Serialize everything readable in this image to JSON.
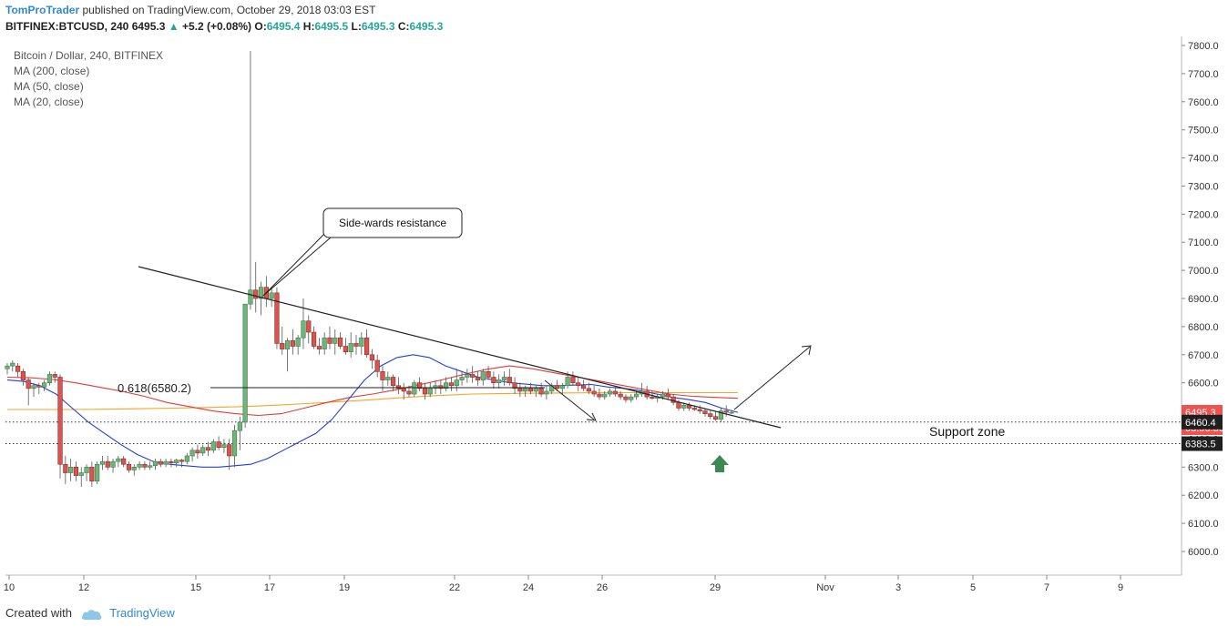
{
  "header": {
    "author": "TomProTrader",
    "published_text": "published on TradingView.com, October 29, 2018 03:03 EST",
    "symbol": "BITFINEX:BTCUSD, 240",
    "last": "6495.3",
    "change_arrow": "▲",
    "change": "+5.2 (+0.08%)",
    "o_label": "O:",
    "o": "6495.4",
    "h_label": "H:",
    "h": "6495.5",
    "l_label": "L:",
    "l": "6495.3",
    "c_label": "C:",
    "c": "6495.3"
  },
  "legend": {
    "title": "Bitcoin / Dollar, 240, BITFINEX",
    "ma200": "MA (200, close)",
    "ma50": "MA (50, close)",
    "ma20": "MA (20, close)"
  },
  "footer": {
    "created_with": "Created with",
    "brand": "TradingView",
    "logo_icon": "tradingview-cloud-icon"
  },
  "annotations": {
    "callout": "Side-wards resistance",
    "fib": "0.618(6580.2)",
    "support": "Support zone",
    "up_arrow_icon": "up-arrow-icon"
  },
  "colors": {
    "up": "#26a69a",
    "down": "#ef5350",
    "up_body": "#6fb57a",
    "down_body": "#d9534f",
    "ma200": "#f5a623",
    "ma50": "#e53935",
    "ma20": "#1e40d8",
    "price_tag": "#ef5350",
    "level_tag": "#1f1f1f",
    "arrow": "#3b8a55"
  },
  "chart_data": {
    "type": "candlestick",
    "ylim": [
      5900,
      7830
    ],
    "y_ticks": [
      "7800.0",
      "7700.0",
      "7600.0",
      "7500.0",
      "7400.0",
      "7300.0",
      "7200.0",
      "7100.0",
      "7000.0",
      "6900.0",
      "6800.0",
      "6700.0",
      "6600.0",
      "6500.0",
      "6400.0",
      "6300.0",
      "6200.0",
      "6100.0",
      "6000.0"
    ],
    "x_ticks": [
      "10",
      "12",
      "15",
      "17",
      "19",
      "22",
      "24",
      "26",
      "29",
      "Nov",
      "3",
      "5",
      "7",
      "9"
    ],
    "price_tags": [
      {
        "label": "6495.3",
        "value": 6495.3,
        "kind": "last"
      },
      {
        "label": "03:56:39",
        "value": 6460,
        "kind": "timer"
      },
      {
        "label": "6460.4",
        "value": 6460.4,
        "kind": "level"
      },
      {
        "label": "6383.5",
        "value": 6383.5,
        "kind": "level"
      }
    ],
    "support_levels": [
      6460.4,
      6383.5
    ],
    "fib_level": 6580.2,
    "candles_ohlc": [
      [
        6650,
        6670,
        6630,
        6660
      ],
      [
        6660,
        6680,
        6640,
        6670
      ],
      [
        6660,
        6670,
        6620,
        6640
      ],
      [
        6640,
        6650,
        6590,
        6610
      ],
      [
        6610,
        6620,
        6520,
        6580
      ],
      [
        6580,
        6600,
        6550,
        6590
      ],
      [
        6590,
        6600,
        6560,
        6585
      ],
      [
        6585,
        6610,
        6570,
        6600
      ],
      [
        6600,
        6640,
        6590,
        6630
      ],
      [
        6630,
        6640,
        6600,
        6620
      ],
      [
        6620,
        6630,
        6260,
        6310
      ],
      [
        6310,
        6340,
        6240,
        6280
      ],
      [
        6280,
        6330,
        6250,
        6300
      ],
      [
        6300,
        6320,
        6250,
        6270
      ],
      [
        6270,
        6300,
        6230,
        6280
      ],
      [
        6280,
        6310,
        6250,
        6300
      ],
      [
        6300,
        6320,
        6230,
        6250
      ],
      [
        6250,
        6320,
        6240,
        6310
      ],
      [
        6310,
        6340,
        6290,
        6320
      ],
      [
        6320,
        6340,
        6290,
        6300
      ],
      [
        6300,
        6330,
        6280,
        6320
      ],
      [
        6320,
        6340,
        6300,
        6330
      ],
      [
        6330,
        6340,
        6300,
        6310
      ],
      [
        6310,
        6320,
        6280,
        6290
      ],
      [
        6290,
        6310,
        6270,
        6300
      ],
      [
        6300,
        6320,
        6290,
        6310
      ],
      [
        6310,
        6320,
        6290,
        6300
      ],
      [
        6300,
        6320,
        6290,
        6305
      ],
      [
        6305,
        6330,
        6290,
        6320
      ],
      [
        6320,
        6330,
        6300,
        6310
      ],
      [
        6310,
        6330,
        6300,
        6320
      ],
      [
        6320,
        6330,
        6300,
        6315
      ],
      [
        6315,
        6330,
        6300,
        6325
      ],
      [
        6325,
        6330,
        6300,
        6320
      ],
      [
        6320,
        6350,
        6310,
        6340
      ],
      [
        6340,
        6370,
        6320,
        6360
      ],
      [
        6360,
        6380,
        6330,
        6350
      ],
      [
        6350,
        6380,
        6340,
        6370
      ],
      [
        6370,
        6390,
        6340,
        6360
      ],
      [
        6360,
        6400,
        6350,
        6390
      ],
      [
        6390,
        6410,
        6360,
        6370
      ],
      [
        6370,
        6400,
        6350,
        6380
      ],
      [
        6380,
        6400,
        6290,
        6340
      ],
      [
        6340,
        6450,
        6300,
        6430
      ],
      [
        6430,
        6480,
        6360,
        6460
      ],
      [
        6460,
        6880,
        6440,
        6880
      ],
      [
        6880,
        7780,
        6860,
        6930
      ],
      [
        6930,
        7030,
        6850,
        6900
      ],
      [
        6900,
        6960,
        6840,
        6940
      ],
      [
        6940,
        6980,
        6870,
        6900
      ],
      [
        6900,
        6940,
        6870,
        6920
      ],
      [
        6920,
        6940,
        6720,
        6740
      ],
      [
        6740,
        6800,
        6700,
        6720
      ],
      [
        6720,
        6760,
        6640,
        6750
      ],
      [
        6750,
        6790,
        6700,
        6730
      ],
      [
        6730,
        6770,
        6700,
        6760
      ],
      [
        6760,
        6900,
        6720,
        6820
      ],
      [
        6820,
        6840,
        6740,
        6780
      ],
      [
        6780,
        6800,
        6720,
        6730
      ],
      [
        6730,
        6760,
        6700,
        6720
      ],
      [
        6720,
        6780,
        6700,
        6760
      ],
      [
        6760,
        6800,
        6720,
        6740
      ],
      [
        6740,
        6790,
        6700,
        6760
      ],
      [
        6760,
        6780,
        6720,
        6730
      ],
      [
        6730,
        6760,
        6700,
        6710
      ],
      [
        6710,
        6780,
        6690,
        6740
      ],
      [
        6740,
        6770,
        6700,
        6730
      ],
      [
        6730,
        6780,
        6700,
        6760
      ],
      [
        6760,
        6790,
        6690,
        6700
      ],
      [
        6700,
        6720,
        6650,
        6680
      ],
      [
        6680,
        6700,
        6620,
        6640
      ],
      [
        6640,
        6660,
        6570,
        6610
      ],
      [
        6610,
        6640,
        6590,
        6620
      ],
      [
        6620,
        6630,
        6570,
        6590
      ],
      [
        6590,
        6620,
        6560,
        6580
      ],
      [
        6580,
        6600,
        6540,
        6570
      ],
      [
        6570,
        6590,
        6550,
        6560
      ],
      [
        6560,
        6610,
        6550,
        6600
      ],
      [
        6600,
        6620,
        6570,
        6580
      ],
      [
        6580,
        6600,
        6540,
        6560
      ],
      [
        6560,
        6600,
        6550,
        6580
      ],
      [
        6580,
        6610,
        6560,
        6590
      ],
      [
        6590,
        6610,
        6560,
        6580
      ],
      [
        6580,
        6620,
        6570,
        6600
      ],
      [
        6600,
        6620,
        6570,
        6590
      ],
      [
        6590,
        6650,
        6570,
        6610
      ],
      [
        6610,
        6640,
        6590,
        6620
      ],
      [
        6620,
        6650,
        6600,
        6630
      ],
      [
        6630,
        6660,
        6600,
        6620
      ],
      [
        6620,
        6640,
        6590,
        6610
      ],
      [
        6610,
        6650,
        6590,
        6640
      ],
      [
        6640,
        6660,
        6610,
        6620
      ],
      [
        6620,
        6640,
        6580,
        6600
      ],
      [
        6600,
        6630,
        6580,
        6610
      ],
      [
        6610,
        6640,
        6590,
        6620
      ],
      [
        6620,
        6650,
        6590,
        6600
      ],
      [
        6600,
        6620,
        6560,
        6580
      ],
      [
        6580,
        6600,
        6550,
        6570
      ],
      [
        6570,
        6590,
        6550,
        6580
      ],
      [
        6580,
        6600,
        6560,
        6570
      ],
      [
        6570,
        6590,
        6550,
        6580
      ],
      [
        6580,
        6600,
        6550,
        6560
      ],
      [
        6560,
        6590,
        6540,
        6570
      ],
      [
        6570,
        6600,
        6560,
        6590
      ],
      [
        6590,
        6610,
        6570,
        6580
      ],
      [
        6580,
        6600,
        6560,
        6590
      ],
      [
        6590,
        6640,
        6580,
        6620
      ],
      [
        6620,
        6640,
        6590,
        6600
      ],
      [
        6600,
        6620,
        6570,
        6590
      ],
      [
        6590,
        6610,
        6570,
        6580
      ],
      [
        6580,
        6600,
        6560,
        6570
      ],
      [
        6570,
        6590,
        6550,
        6560
      ],
      [
        6560,
        6580,
        6540,
        6550
      ],
      [
        6550,
        6570,
        6540,
        6560
      ],
      [
        6560,
        6580,
        6550,
        6570
      ],
      [
        6570,
        6590,
        6550,
        6560
      ],
      [
        6560,
        6570,
        6540,
        6550
      ],
      [
        6550,
        6560,
        6530,
        6540
      ],
      [
        6540,
        6560,
        6530,
        6550
      ],
      [
        6550,
        6570,
        6540,
        6560
      ],
      [
        6560,
        6600,
        6550,
        6570
      ],
      [
        6570,
        6590,
        6540,
        6550
      ],
      [
        6550,
        6570,
        6540,
        6545
      ],
      [
        6545,
        6560,
        6530,
        6550
      ],
      [
        6550,
        6570,
        6540,
        6560
      ],
      [
        6560,
        6580,
        6540,
        6550
      ],
      [
        6550,
        6560,
        6520,
        6530
      ],
      [
        6530,
        6540,
        6500,
        6510
      ],
      [
        6510,
        6530,
        6500,
        6520
      ],
      [
        6520,
        6530,
        6500,
        6510
      ],
      [
        6510,
        6520,
        6500,
        6505
      ],
      [
        6505,
        6520,
        6490,
        6500
      ],
      [
        6500,
        6510,
        6480,
        6490
      ],
      [
        6490,
        6500,
        6470,
        6480
      ],
      [
        6480,
        6500,
        6465,
        6470
      ],
      [
        6470,
        6510,
        6460,
        6500
      ],
      [
        6500,
        6520,
        6480,
        6495
      ],
      [
        6495,
        6500,
        6490,
        6495
      ]
    ],
    "ma20": [
      6610,
      6605,
      6590,
      6560,
      6510,
      6460,
      6420,
      6380,
      6345,
      6320,
      6310,
      6305,
      6300,
      6300,
      6305,
      6310,
      6330,
      6360,
      6390,
      6420,
      6470,
      6540,
      6610,
      6660,
      6690,
      6700,
      6690,
      6660,
      6640,
      6620,
      6610,
      6600,
      6595,
      6590,
      6590,
      6592,
      6594,
      6585,
      6580,
      6572,
      6560,
      6548,
      6540,
      6530,
      6510,
      6495
    ],
    "ma50": [
      6620,
      6618,
      6612,
      6600,
      6585,
      6570,
      6552,
      6530,
      6515,
      6500,
      6490,
      6484,
      6490,
      6510,
      6530,
      6548,
      6560,
      6575,
      6592,
      6610,
      6630,
      6648,
      6660,
      6650,
      6635,
      6620,
      6605,
      6590,
      6575,
      6560,
      6552,
      6548,
      6545
    ],
    "ma200": [
      6505,
      6505,
      6505,
      6506,
      6508,
      6510,
      6512,
      6515,
      6520,
      6526,
      6533,
      6540,
      6548,
      6555,
      6560,
      6562,
      6563,
      6564,
      6565,
      6565,
      6565,
      6565,
      6565
    ]
  }
}
